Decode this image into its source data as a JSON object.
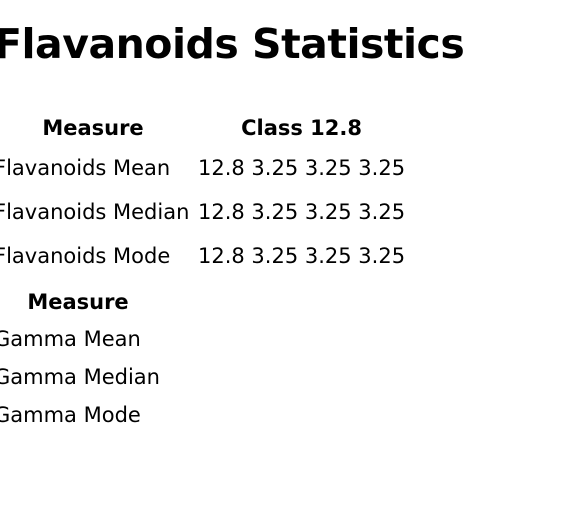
{
  "page_title": "Flavanoids Statistics",
  "flavanoids_table": {
    "headers": [
      "Measure",
      "Class 12.8"
    ],
    "rows": [
      {
        "measure": "Flavanoids Mean",
        "values": "12.8 3.25 3.25 3.25"
      },
      {
        "measure": "Flavanoids Median",
        "values": "12.8 3.25 3.25 3.25"
      },
      {
        "measure": "Flavanoids Mode",
        "values": "12.8 3.25 3.25 3.25"
      }
    ]
  },
  "gamma_table": {
    "headers": [
      "Measure"
    ],
    "rows": [
      {
        "measure": "Gamma Mean"
      },
      {
        "measure": "Gamma Median"
      },
      {
        "measure": "Gamma Mode"
      }
    ]
  }
}
